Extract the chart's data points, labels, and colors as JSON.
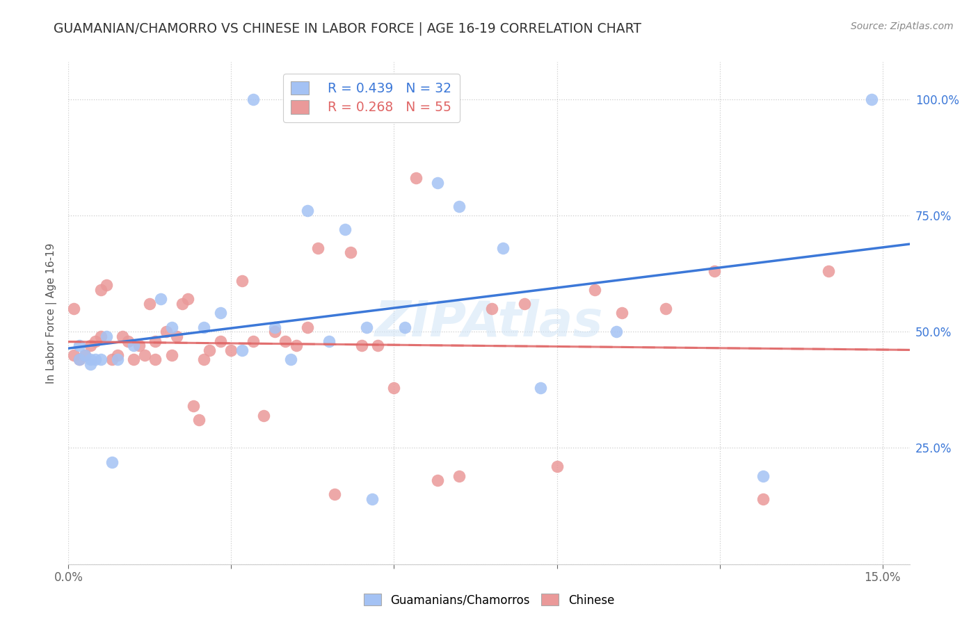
{
  "title": "GUAMANIAN/CHAMORRO VS CHINESE IN LABOR FORCE | AGE 16-19 CORRELATION CHART",
  "source": "Source: ZipAtlas.com",
  "ylabel": "In Labor Force | Age 16-19",
  "xlim": [
    0.0,
    0.155
  ],
  "ylim": [
    0.0,
    1.08
  ],
  "blue_R": 0.439,
  "blue_N": 32,
  "pink_R": 0.268,
  "pink_N": 55,
  "blue_color": "#a4c2f4",
  "pink_color": "#ea9999",
  "blue_line_color": "#3c78d8",
  "pink_line_color": "#e06666",
  "watermark": "ZIPAtlas",
  "legend_label_blue": "Guamanians/Chamorros",
  "legend_label_pink": "Chinese",
  "blue_scatter_x": [
    0.034,
    0.004,
    0.068,
    0.051,
    0.017,
    0.004,
    0.009,
    0.002,
    0.006,
    0.012,
    0.002,
    0.005,
    0.007,
    0.003,
    0.019,
    0.028,
    0.025,
    0.008,
    0.032,
    0.041,
    0.055,
    0.048,
    0.044,
    0.062,
    0.072,
    0.08,
    0.038,
    0.056,
    0.101,
    0.087,
    0.128,
    0.148
  ],
  "blue_scatter_y": [
    1.0,
    0.43,
    0.82,
    0.72,
    0.57,
    0.44,
    0.44,
    0.44,
    0.44,
    0.47,
    0.47,
    0.44,
    0.49,
    0.45,
    0.51,
    0.54,
    0.51,
    0.22,
    0.46,
    0.44,
    0.51,
    0.48,
    0.76,
    0.51,
    0.77,
    0.68,
    0.51,
    0.14,
    0.5,
    0.38,
    0.19,
    1.0
  ],
  "pink_scatter_x": [
    0.001,
    0.001,
    0.002,
    0.003,
    0.004,
    0.005,
    0.006,
    0.006,
    0.007,
    0.008,
    0.009,
    0.01,
    0.011,
    0.012,
    0.013,
    0.014,
    0.015,
    0.016,
    0.016,
    0.018,
    0.019,
    0.02,
    0.021,
    0.022,
    0.023,
    0.024,
    0.025,
    0.026,
    0.028,
    0.03,
    0.032,
    0.034,
    0.036,
    0.038,
    0.04,
    0.042,
    0.044,
    0.046,
    0.049,
    0.052,
    0.054,
    0.057,
    0.06,
    0.064,
    0.068,
    0.072,
    0.078,
    0.084,
    0.09,
    0.097,
    0.102,
    0.11,
    0.119,
    0.128,
    0.14
  ],
  "pink_scatter_y": [
    0.45,
    0.55,
    0.44,
    0.45,
    0.47,
    0.48,
    0.49,
    0.59,
    0.6,
    0.44,
    0.45,
    0.49,
    0.48,
    0.44,
    0.47,
    0.45,
    0.56,
    0.44,
    0.48,
    0.5,
    0.45,
    0.49,
    0.56,
    0.57,
    0.34,
    0.31,
    0.44,
    0.46,
    0.48,
    0.46,
    0.61,
    0.48,
    0.32,
    0.5,
    0.48,
    0.47,
    0.51,
    0.68,
    0.15,
    0.67,
    0.47,
    0.47,
    0.38,
    0.83,
    0.18,
    0.19,
    0.55,
    0.56,
    0.21,
    0.59,
    0.54,
    0.55,
    0.63,
    0.14,
    0.63
  ],
  "x_tick_positions": [
    0.0,
    0.03,
    0.06,
    0.09,
    0.12,
    0.15
  ],
  "x_tick_labels": [
    "0.0%",
    "",
    "",
    "",
    "",
    "15.0%"
  ],
  "y_tick_positions": [
    0.0,
    0.25,
    0.5,
    0.75,
    1.0
  ],
  "y_tick_labels_right": [
    "",
    "25.0%",
    "50.0%",
    "75.0%",
    "100.0%"
  ],
  "grid_color": "#cccccc",
  "spine_color": "#cccccc"
}
